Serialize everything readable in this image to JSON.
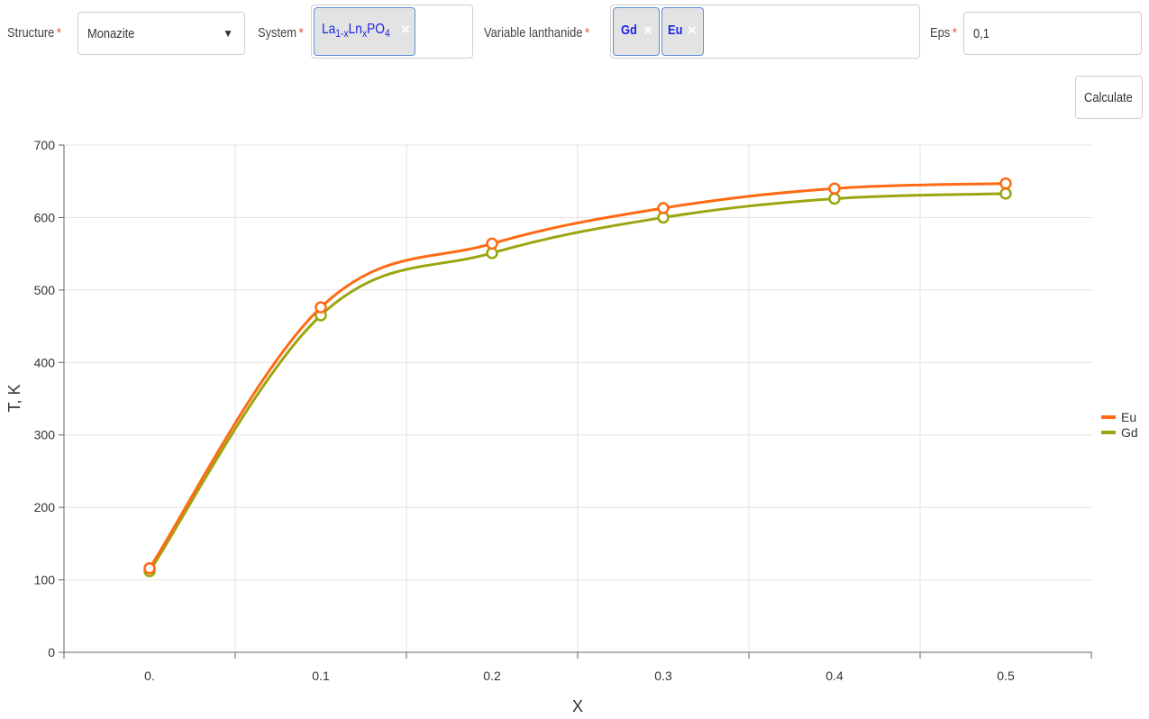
{
  "form": {
    "structure": {
      "label": "Structure",
      "required_mark": "*",
      "value": "Monazite",
      "arrow": "▼"
    },
    "system": {
      "label": "System",
      "required_mark": "*",
      "chip": {
        "la": "La",
        "sub1": "1-x",
        "ln": "Ln",
        "sub2": "x",
        "po": "PO",
        "sub3": "4",
        "remove": "×"
      }
    },
    "lanthanide": {
      "label": "Variable lanthanide",
      "required_mark": "*",
      "chips": [
        {
          "text": "Gd",
          "remove": "×"
        },
        {
          "text": "Eu",
          "remove": "×"
        }
      ]
    },
    "eps": {
      "label": "Eps",
      "required_mark": "*",
      "value": "0,1"
    },
    "calculate_label": "Calculate"
  },
  "colors": {
    "eu": "#ff6a13",
    "gd": "#9aa60f",
    "grid": "#e3e3e3",
    "axis": "#666666",
    "chip_text": "#1e27e0"
  },
  "chart_data": {
    "type": "line",
    "xlabel": "X",
    "ylabel": "T, K",
    "x": [
      0,
      0.1,
      0.2,
      0.3,
      0.4,
      0.5
    ],
    "x_tick_labels": [
      "0.",
      "0.1",
      "0.2",
      "0.3",
      "0.4",
      "0.5"
    ],
    "y_ticks": [
      0,
      100,
      200,
      300,
      400,
      500,
      600,
      700
    ],
    "ylim": [
      0,
      700
    ],
    "grid": true,
    "legend_position": "right",
    "series": [
      {
        "name": "Eu",
        "values": [
          116,
          476,
          564,
          613,
          640,
          647
        ]
      },
      {
        "name": "Gd",
        "values": [
          112,
          465,
          551,
          600,
          626,
          633
        ]
      }
    ]
  }
}
